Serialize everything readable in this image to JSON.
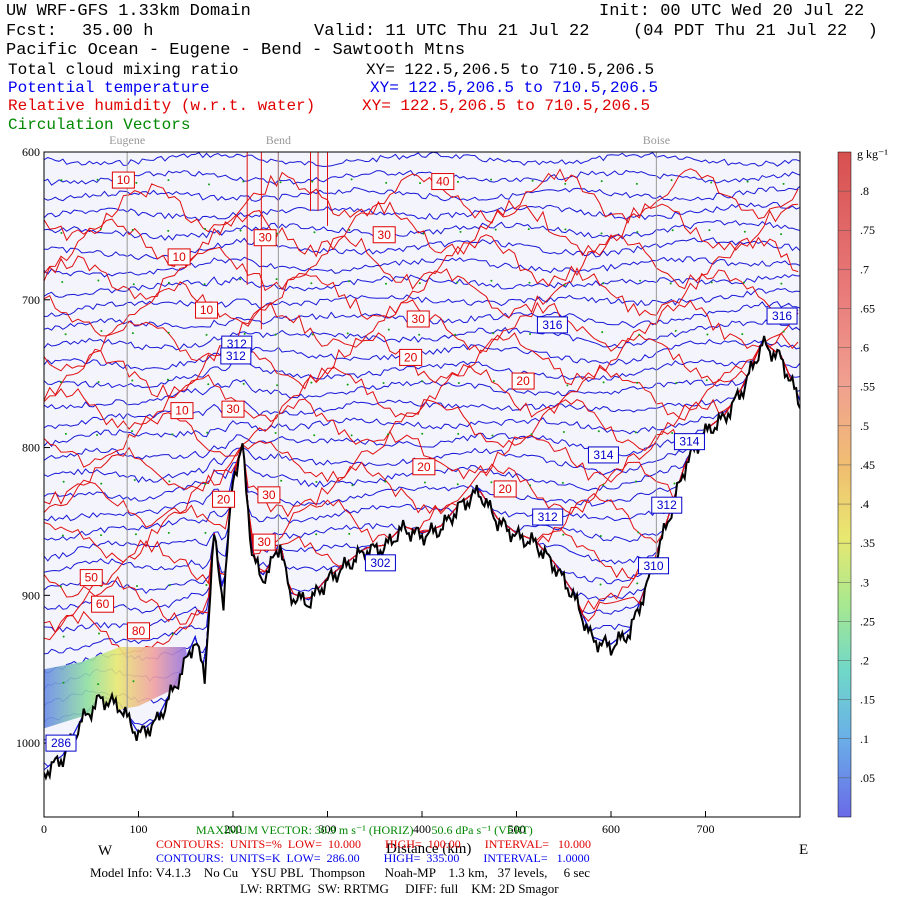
{
  "header": {
    "model": "UW WRF-GFS 1.33km Domain",
    "init": "Init: 00 UTC Wed 20 Jul 22",
    "fcst_label": "Fcst:",
    "fcst_value": "35.00 h",
    "valid": "Valid: 11 UTC Thu 21 Jul 22",
    "local": "(04 PDT Thu 21 Jul 22  )",
    "route": "Pacific Ocean - Eugene - Bend - Sawtooth Mtns"
  },
  "fields": [
    {
      "name": "Total cloud mixing ratio",
      "xy": "XY= 122.5,206.5 to 710.5,206.5",
      "color": "#000000"
    },
    {
      "name": "Potential temperature",
      "xy": "XY= 122.5,206.5 to 710.5,206.5",
      "color": "#0000ee"
    },
    {
      "name": "Relative humidity (w.r.t. water)",
      "xy": "XY= 122.5,206.5 to 710.5,206.5",
      "color": "#e00000"
    },
    {
      "name": "Circulation Vectors",
      "xy": "",
      "color": "#008800"
    }
  ],
  "footer": {
    "max_vector": "MAXIMUM VECTOR: 30.9 m s⁻¹ (HORIZ)      50.6 dPa s⁻¹ (VERT)",
    "west": "W",
    "east": "E",
    "xlabel": "Distance (km)",
    "rh_contours": "CONTOURS:  UNITS=%  LOW=  10.000        HIGH=  100.00        INTERVAL=   10.000",
    "th_contours": "CONTOURS:  UNITS=K  LOW=  286.00        HIGH=  335.00        INTERVAL=   1.0000",
    "model_info": "Model Info: V4.1.3    No Cu    YSU PBL  Thompson      Noah-MP    1.3 km,   37 levels,     6 sec",
    "physics": "LW: RRTMG  SW: RRTMG     DIFF: full    KM: 2D Smagor"
  },
  "chart_data": {
    "type": "cross-section",
    "xlabel": "Distance (km)",
    "ylabel": "",
    "xlim": [
      0,
      800
    ],
    "ylim": [
      1050,
      600
    ],
    "x_ticks": [
      "0",
      "100",
      "200",
      "300",
      "400",
      "500",
      "600",
      "700"
    ],
    "y_ticks": [
      "600",
      "700",
      "800",
      "900",
      "1000"
    ],
    "cities": [
      {
        "name": "Eugene",
        "x_km": 88
      },
      {
        "name": "Bend",
        "x_km": 248
      },
      {
        "name": "Boise",
        "x_km": 648
      }
    ],
    "terrain_profile": {
      "x_km": [
        0,
        20,
        40,
        60,
        80,
        100,
        120,
        140,
        160,
        170,
        180,
        190,
        200,
        210,
        220,
        230,
        240,
        250,
        260,
        280,
        300,
        320,
        340,
        360,
        380,
        400,
        420,
        440,
        460,
        480,
        500,
        520,
        540,
        560,
        580,
        600,
        620,
        640,
        660,
        680,
        700,
        720,
        740,
        760,
        780,
        800
      ],
      "pressure_hPa": [
        1020,
        1010,
        985,
        970,
        975,
        995,
        985,
        960,
        930,
        955,
        860,
        905,
        820,
        800,
        870,
        890,
        880,
        865,
        900,
        905,
        890,
        880,
        870,
        868,
        855,
        860,
        855,
        840,
        830,
        850,
        860,
        865,
        880,
        900,
        930,
        935,
        925,
        890,
        850,
        810,
        790,
        780,
        760,
        730,
        740,
        770
      ]
    },
    "theta_labels": [
      {
        "text": "286",
        "x_km": 18,
        "p": 1000
      },
      {
        "text": "312",
        "x_km": 204,
        "p": 730
      },
      {
        "text": "312",
        "x_km": 203,
        "p": 738
      },
      {
        "text": "302",
        "x_km": 356,
        "p": 878
      },
      {
        "text": "316",
        "x_km": 538,
        "p": 717
      },
      {
        "text": "314",
        "x_km": 592,
        "p": 805
      },
      {
        "text": "314",
        "x_km": 683,
        "p": 796
      },
      {
        "text": "312",
        "x_km": 533,
        "p": 847
      },
      {
        "text": "312",
        "x_km": 659,
        "p": 839
      },
      {
        "text": "310",
        "x_km": 645,
        "p": 880
      },
      {
        "text": "316",
        "x_km": 781,
        "p": 711
      }
    ],
    "rh_labels": [
      {
        "text": "10",
        "x_km": 84,
        "p": 619
      },
      {
        "text": "40",
        "x_km": 422,
        "p": 620
      },
      {
        "text": "30",
        "x_km": 234,
        "p": 658
      },
      {
        "text": "30",
        "x_km": 360,
        "p": 656
      },
      {
        "text": "10",
        "x_km": 143,
        "p": 671
      },
      {
        "text": "10",
        "x_km": 172,
        "p": 707
      },
      {
        "text": "30",
        "x_km": 396,
        "p": 713
      },
      {
        "text": "20",
        "x_km": 388,
        "p": 739
      },
      {
        "text": "20",
        "x_km": 507,
        "p": 755
      },
      {
        "text": "10",
        "x_km": 146,
        "p": 775
      },
      {
        "text": "30",
        "x_km": 200,
        "p": 774
      },
      {
        "text": "20",
        "x_km": 402,
        "p": 813
      },
      {
        "text": "20",
        "x_km": 488,
        "p": 828
      },
      {
        "text": "30",
        "x_km": 238,
        "p": 832
      },
      {
        "text": "20",
        "x_km": 190,
        "p": 835
      },
      {
        "text": "30",
        "x_km": 233,
        "p": 864
      },
      {
        "text": "50",
        "x_km": 50,
        "p": 888
      },
      {
        "text": "60",
        "x_km": 62,
        "p": 906
      },
      {
        "text": "80",
        "x_km": 100,
        "p": 924
      }
    ],
    "colorbar": {
      "unit": "g kg⁻¹",
      "labels": [
        ".8",
        ".75",
        ".7",
        ".65",
        ".6",
        ".55",
        ".5",
        ".45",
        ".4",
        ".35",
        ".3",
        ".25",
        ".2",
        ".15",
        ".1",
        ".05"
      ],
      "max": 0.85,
      "min": 0.0
    }
  }
}
